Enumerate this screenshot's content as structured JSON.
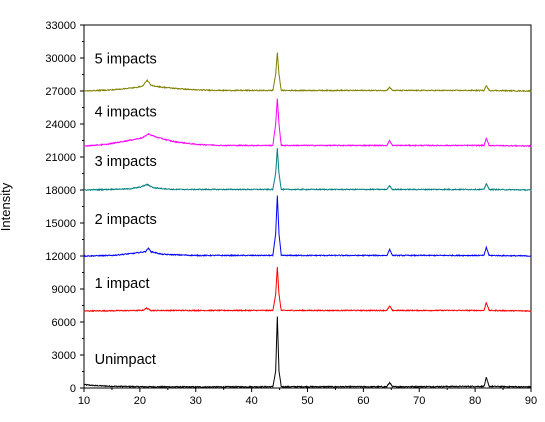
{
  "chart_data": {
    "type": "line",
    "title": "",
    "xlabel": "",
    "ylabel": "Intensity",
    "xlim": [
      10,
      90
    ],
    "ylim": [
      0,
      33000
    ],
    "x_ticks": [
      10,
      20,
      30,
      40,
      50,
      60,
      70,
      80,
      90
    ],
    "y_ticks": [
      0,
      3000,
      6000,
      9000,
      12000,
      15000,
      18000,
      21000,
      24000,
      27000,
      30000,
      33000
    ],
    "grid": false,
    "legend": "none",
    "series": [
      {
        "name": "Unimpact",
        "color": "#000000",
        "baseline": 100,
        "points": [
          [
            10,
            300
          ],
          [
            12,
            220
          ],
          [
            15,
            160
          ],
          [
            20,
            120
          ],
          [
            30,
            100
          ],
          [
            43.8,
            120
          ],
          [
            44.3,
            1500
          ],
          [
            44.6,
            6500
          ],
          [
            44.9,
            1500
          ],
          [
            45.3,
            120
          ],
          [
            64.2,
            120
          ],
          [
            64.7,
            500
          ],
          [
            65.2,
            120
          ],
          [
            81.6,
            150
          ],
          [
            82.0,
            950
          ],
          [
            82.5,
            150
          ],
          [
            90,
            100
          ]
        ]
      },
      {
        "name": "1 impact",
        "color": "#ff0000",
        "baseline": 7000,
        "points": [
          [
            10,
            7000
          ],
          [
            20.5,
            7050
          ],
          [
            21.2,
            7250
          ],
          [
            22,
            7050
          ],
          [
            43.8,
            7050
          ],
          [
            44.3,
            8500
          ],
          [
            44.6,
            11000
          ],
          [
            44.9,
            8500
          ],
          [
            45.3,
            7050
          ],
          [
            64.2,
            7050
          ],
          [
            64.7,
            7450
          ],
          [
            65.2,
            7050
          ],
          [
            81.6,
            7050
          ],
          [
            82.0,
            7800
          ],
          [
            82.5,
            7050
          ],
          [
            90,
            7000
          ]
        ]
      },
      {
        "name": "2 impacts",
        "color": "#0000ff",
        "baseline": 12000,
        "points": [
          [
            10,
            12000
          ],
          [
            15,
            12050
          ],
          [
            19,
            12250
          ],
          [
            21,
            12400
          ],
          [
            21.5,
            12700
          ],
          [
            22,
            12400
          ],
          [
            24,
            12150
          ],
          [
            30,
            12050
          ],
          [
            43.8,
            12050
          ],
          [
            44.3,
            14000
          ],
          [
            44.6,
            17500
          ],
          [
            44.9,
            14000
          ],
          [
            45.3,
            12050
          ],
          [
            64.2,
            12050
          ],
          [
            64.7,
            12600
          ],
          [
            65.2,
            12050
          ],
          [
            81.6,
            12050
          ],
          [
            82.0,
            12800
          ],
          [
            82.5,
            12050
          ],
          [
            90,
            12000
          ]
        ]
      },
      {
        "name": "3 impacts",
        "color": "#008080",
        "baseline": 18000,
        "points": [
          [
            10,
            18000
          ],
          [
            18,
            18100
          ],
          [
            20,
            18250
          ],
          [
            21.3,
            18500
          ],
          [
            22.5,
            18200
          ],
          [
            26,
            18050
          ],
          [
            43.8,
            18050
          ],
          [
            44.3,
            19500
          ],
          [
            44.6,
            21800
          ],
          [
            44.9,
            19500
          ],
          [
            45.3,
            18050
          ],
          [
            64.2,
            18050
          ],
          [
            64.7,
            18400
          ],
          [
            65.2,
            18050
          ],
          [
            81.6,
            18050
          ],
          [
            82.0,
            18600
          ],
          [
            82.5,
            18050
          ],
          [
            90,
            18000
          ]
        ]
      },
      {
        "name": "4 impacts",
        "color": "#ff00ff",
        "baseline": 22000,
        "points": [
          [
            10,
            22000
          ],
          [
            14,
            22150
          ],
          [
            18,
            22500
          ],
          [
            20.5,
            22750
          ],
          [
            21.5,
            23100
          ],
          [
            23,
            22800
          ],
          [
            26,
            22400
          ],
          [
            30,
            22150
          ],
          [
            35,
            22050
          ],
          [
            43.8,
            22050
          ],
          [
            44.3,
            24000
          ],
          [
            44.6,
            26300
          ],
          [
            44.9,
            24000
          ],
          [
            45.3,
            22050
          ],
          [
            64.2,
            22050
          ],
          [
            64.7,
            22500
          ],
          [
            65.2,
            22050
          ],
          [
            81.6,
            22050
          ],
          [
            82.0,
            22700
          ],
          [
            82.5,
            22050
          ],
          [
            90,
            22000
          ]
        ]
      },
      {
        "name": "5 impacts",
        "color": "#808000",
        "baseline": 27000,
        "points": [
          [
            10,
            27000
          ],
          [
            15,
            27100
          ],
          [
            19,
            27300
          ],
          [
            20.5,
            27450
          ],
          [
            21.3,
            28000
          ],
          [
            22,
            27500
          ],
          [
            24,
            27350
          ],
          [
            26,
            27250
          ],
          [
            30,
            27100
          ],
          [
            35,
            27050
          ],
          [
            43.8,
            27050
          ],
          [
            44.3,
            28500
          ],
          [
            44.6,
            30500
          ],
          [
            44.9,
            28500
          ],
          [
            45.3,
            27050
          ],
          [
            64.2,
            27050
          ],
          [
            64.7,
            27350
          ],
          [
            65.2,
            27050
          ],
          [
            81.6,
            27050
          ],
          [
            82.0,
            27500
          ],
          [
            82.5,
            27050
          ],
          [
            90,
            27000
          ]
        ]
      }
    ],
    "annotations": [
      {
        "text": "Unimpact",
        "x": 12,
        "y": 2200
      },
      {
        "text": "1 impact",
        "x": 12,
        "y": 9100
      },
      {
        "text": "2 impacts",
        "x": 12,
        "y": 14900
      },
      {
        "text": "3 impacts",
        "x": 12,
        "y": 20200
      },
      {
        "text": "4 impacts",
        "x": 12,
        "y": 24700
      },
      {
        "text": "5 impacts",
        "x": 12,
        "y": 29500
      }
    ]
  }
}
